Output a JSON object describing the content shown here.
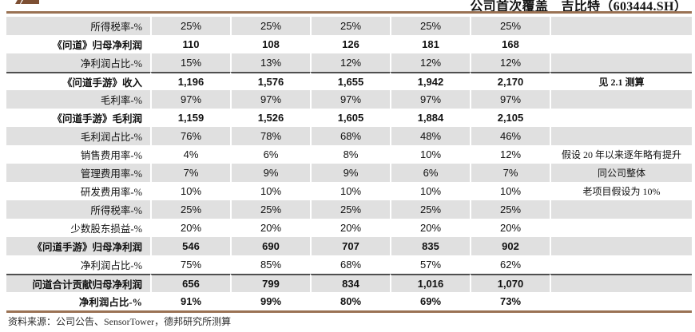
{
  "header": {
    "title": "公司首次覆盖　吉比特（603444.SH）",
    "logo_icon": "publisher-logo"
  },
  "colors": {
    "accent_brown": "#9a7254",
    "logo_brown": "#7d4f33",
    "row_gray": "#e0e0e0",
    "separator_dark": "#4f4f4f"
  },
  "table": {
    "value_columns_count": 5,
    "rows": [
      {
        "label": "所得税率-%",
        "values": [
          "25%",
          "25%",
          "25%",
          "25%",
          "25%"
        ],
        "note": "",
        "bg": "gray",
        "bold": false,
        "separator_top": false
      },
      {
        "label": "《问道》归母净利润",
        "values": [
          "110",
          "108",
          "126",
          "181",
          "168"
        ],
        "note": "",
        "bg": "white",
        "bold": true,
        "separator_top": false
      },
      {
        "label": "净利润占比-%",
        "values": [
          "15%",
          "13%",
          "12%",
          "12%",
          "12%"
        ],
        "note": "",
        "bg": "gray",
        "bold": false,
        "separator_top": false
      },
      {
        "label": "《问道手游》收入",
        "values": [
          "1,196",
          "1,576",
          "1,655",
          "1,942",
          "2,170"
        ],
        "note": "见 2.1 测算",
        "bg": "white",
        "bold": true,
        "separator_top": true
      },
      {
        "label": "毛利率-%",
        "values": [
          "97%",
          "97%",
          "97%",
          "97%",
          "97%"
        ],
        "note": "",
        "bg": "gray",
        "bold": false,
        "separator_top": false
      },
      {
        "label": "《问道手游》毛利润",
        "values": [
          "1,159",
          "1,526",
          "1,605",
          "1,884",
          "2,105"
        ],
        "note": "",
        "bg": "white",
        "bold": true,
        "separator_top": false
      },
      {
        "label": "毛利润占比-%",
        "values": [
          "76%",
          "78%",
          "68%",
          "48%",
          "46%"
        ],
        "note": "",
        "bg": "gray",
        "bold": false,
        "separator_top": false
      },
      {
        "label": "销售费用率-%",
        "values": [
          "4%",
          "6%",
          "8%",
          "10%",
          "12%"
        ],
        "note": "假设 20 年以来逐年略有提升",
        "bg": "white",
        "bold": false,
        "separator_top": false
      },
      {
        "label": "管理费用率-%",
        "values": [
          "7%",
          "9%",
          "9%",
          "6%",
          "7%"
        ],
        "note": "同公司整体",
        "bg": "gray",
        "bold": false,
        "separator_top": false
      },
      {
        "label": "研发费用率-%",
        "values": [
          "10%",
          "10%",
          "10%",
          "10%",
          "10%"
        ],
        "note": "老项目假设为 10%",
        "bg": "white",
        "bold": false,
        "separator_top": false
      },
      {
        "label": "所得税率-%",
        "values": [
          "25%",
          "25%",
          "25%",
          "25%",
          "25%"
        ],
        "note": "",
        "bg": "gray",
        "bold": false,
        "separator_top": false
      },
      {
        "label": "少数股东损益-%",
        "values": [
          "20%",
          "20%",
          "20%",
          "20%",
          "20%"
        ],
        "note": "",
        "bg": "white",
        "bold": false,
        "separator_top": false
      },
      {
        "label": "《问道手游》归母净利润",
        "values": [
          "546",
          "690",
          "707",
          "835",
          "902"
        ],
        "note": "",
        "bg": "gray",
        "bold": true,
        "separator_top": false
      },
      {
        "label": "净利润占比-%",
        "values": [
          "75%",
          "85%",
          "68%",
          "57%",
          "62%"
        ],
        "note": "",
        "bg": "white",
        "bold": false,
        "separator_top": false
      },
      {
        "label": "问道合计贡献归母净利润",
        "values": [
          "656",
          "799",
          "834",
          "1,016",
          "1,070"
        ],
        "note": "",
        "bg": "gray",
        "bold": true,
        "separator_top": true
      },
      {
        "label": "净利润占比-%",
        "values": [
          "91%",
          "99%",
          "80%",
          "69%",
          "73%"
        ],
        "note": "",
        "bg": "white",
        "bold": true,
        "separator_top": false
      }
    ]
  },
  "footer": {
    "source": "资料来源：公司公告、SensorTower，德邦研究所测算"
  }
}
